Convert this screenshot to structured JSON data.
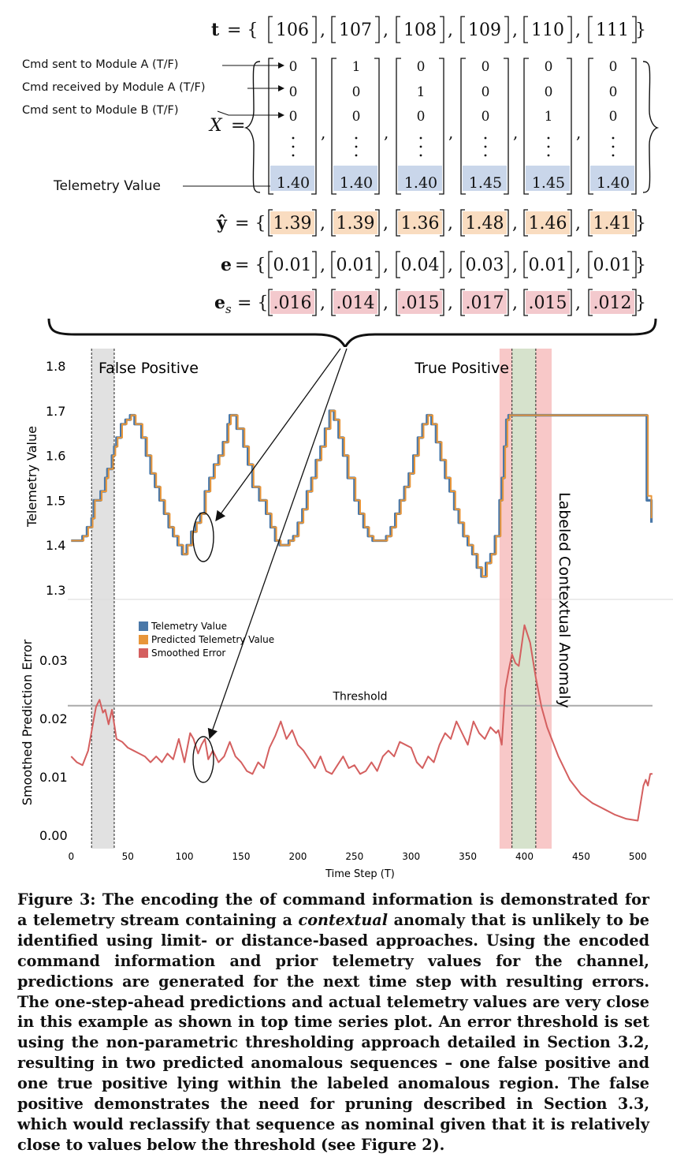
{
  "equations": {
    "t": {
      "label": "t",
      "values": [
        "106",
        "107",
        "108",
        "109",
        "110",
        "111"
      ]
    },
    "X": {
      "label": "X",
      "rows": [
        [
          "0",
          "1",
          "0",
          "0",
          "0",
          "0"
        ],
        [
          "0",
          "0",
          "1",
          "0",
          "0",
          "0"
        ],
        [
          "0",
          "0",
          "0",
          "0",
          "1",
          "0"
        ]
      ],
      "telemetry": [
        "1.40",
        "1.40",
        "1.40",
        "1.45",
        "1.45",
        "1.40"
      ]
    },
    "yhat": {
      "label": "ŷ",
      "values": [
        "1.39",
        "1.39",
        "1.36",
        "1.48",
        "1.46",
        "1.41"
      ]
    },
    "e": {
      "label": "e",
      "values": [
        "0.01",
        "0.01",
        "0.04",
        "0.03",
        "0.01",
        "0.01"
      ]
    },
    "es": {
      "label": "e",
      "subscript": "s",
      "values": [
        ".016",
        ".014",
        ".015",
        ".017",
        ".015",
        ".012"
      ]
    }
  },
  "annotations": {
    "cmd_a": "Cmd sent to Module A (T/F)",
    "cmd_recv": "Cmd received by Module A (T/F)",
    "cmd_b": "Cmd sent to Module B (T/F)",
    "telemetry": "Telemetry Value"
  },
  "colors": {
    "telemetry": "#4a78a8",
    "predicted": "#e8963a",
    "error": "#d45f5f",
    "telemetry_highlight": "#c9d6ea",
    "error_highlight": "#f3c9cd",
    "prediction_highlight": "#f9dcc0",
    "false_positive_band": "#dcdcdc",
    "true_positive_band": "#f7c2c2",
    "labeled_anomaly_band": "#d6e2cc"
  },
  "chart_data": [
    {
      "type": "line",
      "title": "",
      "ylabel": "Telemetry Value",
      "ylim": [
        1.3,
        1.8
      ],
      "yticks": [
        "1.8",
        "1.7",
        "1.6",
        "1.5",
        "1.4",
        "1.3"
      ],
      "xlim": [
        -3,
        513
      ],
      "annotations": {
        "false_positive": "False Positive",
        "true_positive": "True Positive",
        "labeled_anomaly": "Labeled Contextual Anomaly"
      },
      "regions": {
        "false_positive": [
          18,
          38
        ],
        "true_positive": [
          378,
          424
        ],
        "labeled_anomaly": [
          389,
          410
        ]
      },
      "series": [
        {
          "name": "Telemetry Value",
          "x": [
            0,
            4,
            10,
            14,
            18,
            20,
            26,
            30,
            32,
            36,
            38,
            40,
            44,
            48,
            52,
            56,
            62,
            66,
            70,
            74,
            78,
            82,
            86,
            90,
            94,
            98,
            102,
            106,
            110,
            114,
            118,
            122,
            126,
            130,
            134,
            138,
            140,
            146,
            152,
            156,
            160,
            166,
            172,
            176,
            180,
            184,
            188,
            192,
            196,
            200,
            204,
            208,
            212,
            216,
            220,
            224,
            228,
            232,
            236,
            240,
            244,
            250,
            254,
            258,
            262,
            266,
            270,
            274,
            278,
            282,
            286,
            290,
            294,
            298,
            302,
            306,
            310,
            314,
            318,
            322,
            326,
            330,
            334,
            338,
            342,
            346,
            350,
            354,
            358,
            362,
            366,
            370,
            374,
            378,
            380,
            382,
            384,
            386,
            390,
            394,
            400,
            410,
            420,
            430,
            440,
            450,
            460,
            470,
            480,
            490,
            500,
            505,
            508,
            510,
            512
          ],
          "y": [
            1.41,
            1.41,
            1.42,
            1.44,
            1.46,
            1.5,
            1.52,
            1.55,
            1.57,
            1.6,
            1.62,
            1.64,
            1.67,
            1.68,
            1.69,
            1.67,
            1.64,
            1.6,
            1.56,
            1.53,
            1.5,
            1.47,
            1.44,
            1.42,
            1.4,
            1.38,
            1.4,
            1.43,
            1.45,
            1.47,
            1.52,
            1.55,
            1.58,
            1.6,
            1.63,
            1.67,
            1.69,
            1.66,
            1.62,
            1.58,
            1.53,
            1.5,
            1.47,
            1.44,
            1.41,
            1.4,
            1.4,
            1.41,
            1.42,
            1.45,
            1.48,
            1.52,
            1.55,
            1.59,
            1.62,
            1.66,
            1.7,
            1.68,
            1.64,
            1.6,
            1.55,
            1.5,
            1.47,
            1.44,
            1.42,
            1.41,
            1.41,
            1.41,
            1.42,
            1.44,
            1.47,
            1.5,
            1.53,
            1.56,
            1.6,
            1.64,
            1.67,
            1.69,
            1.67,
            1.63,
            1.59,
            1.55,
            1.52,
            1.48,
            1.45,
            1.42,
            1.4,
            1.38,
            1.35,
            1.33,
            1.36,
            1.38,
            1.42,
            1.5,
            1.55,
            1.62,
            1.68,
            1.69,
            1.69,
            1.69,
            1.69,
            1.69,
            1.69,
            1.69,
            1.69,
            1.69,
            1.69,
            1.69,
            1.69,
            1.69,
            1.69,
            1.69,
            1.5,
            1.5,
            1.45
          ]
        },
        {
          "name": "Predicted Telemetry Value",
          "x": [
            0,
            5,
            11,
            15,
            19,
            21,
            27,
            31,
            33,
            37,
            39,
            41,
            45,
            49,
            53,
            57,
            63,
            67,
            71,
            75,
            79,
            83,
            87,
            91,
            95,
            99,
            103,
            107,
            111,
            115,
            119,
            123,
            127,
            131,
            135,
            139,
            141,
            147,
            153,
            157,
            161,
            167,
            173,
            177,
            181,
            185,
            189,
            193,
            197,
            201,
            205,
            209,
            213,
            217,
            221,
            225,
            229,
            233,
            237,
            241,
            245,
            251,
            255,
            259,
            263,
            267,
            271,
            275,
            279,
            283,
            287,
            291,
            295,
            299,
            303,
            307,
            311,
            315,
            319,
            323,
            327,
            331,
            335,
            339,
            343,
            347,
            351,
            355,
            359,
            363,
            367,
            371,
            375,
            379,
            381,
            383,
            385,
            387,
            391,
            395,
            401,
            411,
            421,
            431,
            441,
            451,
            461,
            471,
            481,
            491,
            501,
            506,
            509,
            511,
            512
          ],
          "y": [
            1.41,
            1.41,
            1.42,
            1.44,
            1.46,
            1.5,
            1.52,
            1.55,
            1.57,
            1.6,
            1.62,
            1.64,
            1.67,
            1.68,
            1.69,
            1.67,
            1.64,
            1.6,
            1.56,
            1.53,
            1.5,
            1.47,
            1.44,
            1.42,
            1.4,
            1.38,
            1.4,
            1.43,
            1.45,
            1.47,
            1.52,
            1.55,
            1.58,
            1.6,
            1.63,
            1.67,
            1.69,
            1.66,
            1.62,
            1.58,
            1.53,
            1.5,
            1.47,
            1.44,
            1.41,
            1.4,
            1.4,
            1.41,
            1.42,
            1.45,
            1.48,
            1.52,
            1.55,
            1.59,
            1.62,
            1.66,
            1.7,
            1.68,
            1.64,
            1.6,
            1.55,
            1.5,
            1.47,
            1.44,
            1.42,
            1.41,
            1.41,
            1.41,
            1.42,
            1.44,
            1.47,
            1.5,
            1.53,
            1.56,
            1.6,
            1.64,
            1.67,
            1.69,
            1.67,
            1.63,
            1.59,
            1.55,
            1.52,
            1.48,
            1.45,
            1.42,
            1.4,
            1.38,
            1.35,
            1.33,
            1.36,
            1.38,
            1.42,
            1.5,
            1.55,
            1.62,
            1.68,
            1.69,
            1.69,
            1.69,
            1.69,
            1.69,
            1.69,
            1.69,
            1.69,
            1.69,
            1.69,
            1.69,
            1.69,
            1.69,
            1.69,
            1.69,
            1.51,
            1.51,
            1.46
          ]
        }
      ]
    },
    {
      "type": "line",
      "title": "",
      "xlabel": "Time Step (T)",
      "ylabel": "Smoothed Prediction Error",
      "ylim": [
        0.0,
        0.04
      ],
      "yticks": [
        "0.03",
        "0.02",
        "0.01",
        "0.00"
      ],
      "xlim": [
        -3,
        513
      ],
      "xticks": [
        "0",
        "50",
        "100",
        "150",
        "200",
        "250",
        "300",
        "350",
        "400",
        "450",
        "500"
      ],
      "threshold": {
        "label": "Threshold",
        "value": 0.0222
      },
      "legend": [
        "Telemetry Value",
        "Predicted Telemetry Value",
        "Smoothed Error"
      ],
      "legend_position": "upper-left",
      "series": [
        {
          "name": "Smoothed Error",
          "x": [
            0,
            5,
            10,
            15,
            20,
            22,
            25,
            28,
            30,
            33,
            36,
            38,
            40,
            45,
            50,
            55,
            60,
            65,
            70,
            75,
            80,
            85,
            90,
            95,
            100,
            105,
            108,
            112,
            115,
            118,
            121,
            125,
            130,
            135,
            140,
            145,
            150,
            155,
            160,
            165,
            170,
            175,
            180,
            185,
            190,
            195,
            200,
            205,
            210,
            215,
            220,
            225,
            230,
            235,
            240,
            245,
            250,
            255,
            260,
            265,
            270,
            275,
            280,
            285,
            290,
            295,
            300,
            305,
            310,
            315,
            320,
            325,
            330,
            335,
            340,
            345,
            350,
            355,
            360,
            365,
            370,
            375,
            377,
            380,
            383,
            386,
            389,
            392,
            395,
            400,
            405,
            410,
            415,
            420,
            430,
            440,
            450,
            460,
            470,
            480,
            490,
            500,
            505,
            507,
            509,
            511,
            513
          ],
          "y": [
            0.0135,
            0.0125,
            0.012,
            0.0145,
            0.02,
            0.022,
            0.0232,
            0.021,
            0.0215,
            0.019,
            0.0215,
            0.019,
            0.0165,
            0.016,
            0.015,
            0.0145,
            0.014,
            0.0135,
            0.0125,
            0.0135,
            0.0125,
            0.014,
            0.013,
            0.0165,
            0.0125,
            0.0175,
            0.0165,
            0.014,
            0.0155,
            0.0165,
            0.013,
            0.0145,
            0.0125,
            0.0135,
            0.016,
            0.0135,
            0.0125,
            0.011,
            0.0105,
            0.0125,
            0.0115,
            0.015,
            0.017,
            0.0195,
            0.0165,
            0.018,
            0.0155,
            0.0145,
            0.013,
            0.0115,
            0.0135,
            0.011,
            0.0105,
            0.012,
            0.0135,
            0.0115,
            0.012,
            0.0105,
            0.011,
            0.0125,
            0.011,
            0.0135,
            0.0145,
            0.0135,
            0.016,
            0.0155,
            0.015,
            0.0125,
            0.0115,
            0.0135,
            0.0125,
            0.0155,
            0.0175,
            0.0165,
            0.0195,
            0.0175,
            0.0155,
            0.0195,
            0.0175,
            0.0165,
            0.0185,
            0.0175,
            0.018,
            0.0155,
            0.025,
            0.0282,
            0.031,
            0.0295,
            0.029,
            0.036,
            0.033,
            0.027,
            0.022,
            0.0185,
            0.0135,
            0.0095,
            0.007,
            0.0055,
            0.0045,
            0.0035,
            0.0028,
            0.0025,
            0.0085,
            0.0095,
            0.0085,
            0.0105,
            0.0105
          ]
        }
      ]
    }
  ],
  "caption": {
    "part1": "Figure 3: The encoding the of command information is demonstrated for a telemetry stream containing a ",
    "emphasis": "contextual",
    "part2": " anomaly that is unlikely to be identified using limit- or distance-based approaches. Using the encoded command information and prior telemetry values for the channel, predictions are generated for the next time step with resulting errors. The one-step-ahead predictions and actual telemetry values are very close in this example as shown in top time series plot. An error threshold is set using the non-parametric thresholding approach detailed in Section 3.2, resulting in two predicted anomalous sequences – one false positive and one true positive lying within the labeled anomalous region. The false positive demonstrates the need for pruning described in Section 3.3, which would reclassify that sequence as nominal given that it is relatively close to values below the threshold (see Figure 2)."
  }
}
